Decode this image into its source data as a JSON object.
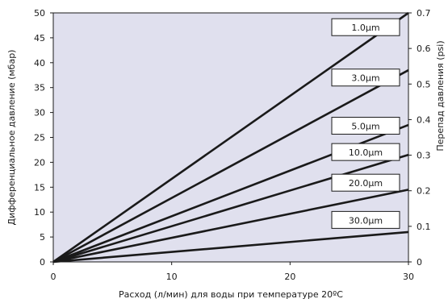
{
  "chart_data": {
    "type": "line",
    "title": "",
    "xlabel": "Расход (л/мин) для воды при температуре 20ºС",
    "ylabel": "Дифференциальное давление (мбар)",
    "y2label": "Перепад давления (psi)",
    "xlim": [
      0,
      30
    ],
    "ylim": [
      0,
      50
    ],
    "y2lim": [
      0,
      0.7
    ],
    "xticks": [
      "0",
      "10",
      "20",
      "30"
    ],
    "yticks": [
      "0",
      "5",
      "10",
      "15",
      "20",
      "25",
      "30",
      "35",
      "40",
      "45",
      "50"
    ],
    "y2ticks": [
      "0",
      "0.1",
      "0.2",
      "0.3",
      "0.4",
      "0.5",
      "0.6",
      "0.7"
    ],
    "grid": false,
    "background_color": "#e0e0ee",
    "line_color": "#1a1a1a",
    "series": [
      {
        "name": "1.0µm",
        "x": [
          0,
          30
        ],
        "y": [
          0,
          50
        ]
      },
      {
        "name": "3.0µm",
        "x": [
          0,
          30
        ],
        "y": [
          0,
          38.5
        ]
      },
      {
        "name": "5.0µm",
        "x": [
          0,
          30
        ],
        "y": [
          0,
          27.5
        ]
      },
      {
        "name": "10.0µm",
        "x": [
          0,
          30
        ],
        "y": [
          0,
          21.5
        ]
      },
      {
        "name": "20.0µm",
        "x": [
          0,
          30
        ],
        "y": [
          0,
          14.5
        ]
      },
      {
        "name": "30.0µm",
        "x": [
          0,
          30
        ],
        "y": [
          0,
          6
        ]
      }
    ]
  }
}
